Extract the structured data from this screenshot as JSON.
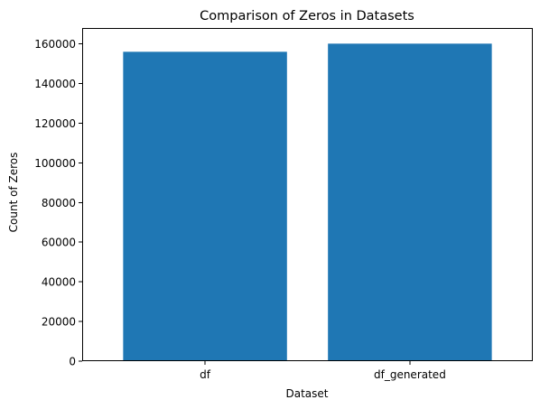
{
  "chart_data": {
    "type": "bar",
    "title": "Comparison of Zeros in Datasets",
    "xlabel": "Dataset",
    "ylabel": "Count of Zeros",
    "categories": [
      "df",
      "df_generated"
    ],
    "values": [
      156000,
      160100
    ],
    "ylim": [
      0,
      168000
    ],
    "yticks": [
      0,
      20000,
      40000,
      60000,
      80000,
      100000,
      120000,
      140000,
      160000
    ],
    "bar_color": "#1f77b4",
    "grid": false
  }
}
